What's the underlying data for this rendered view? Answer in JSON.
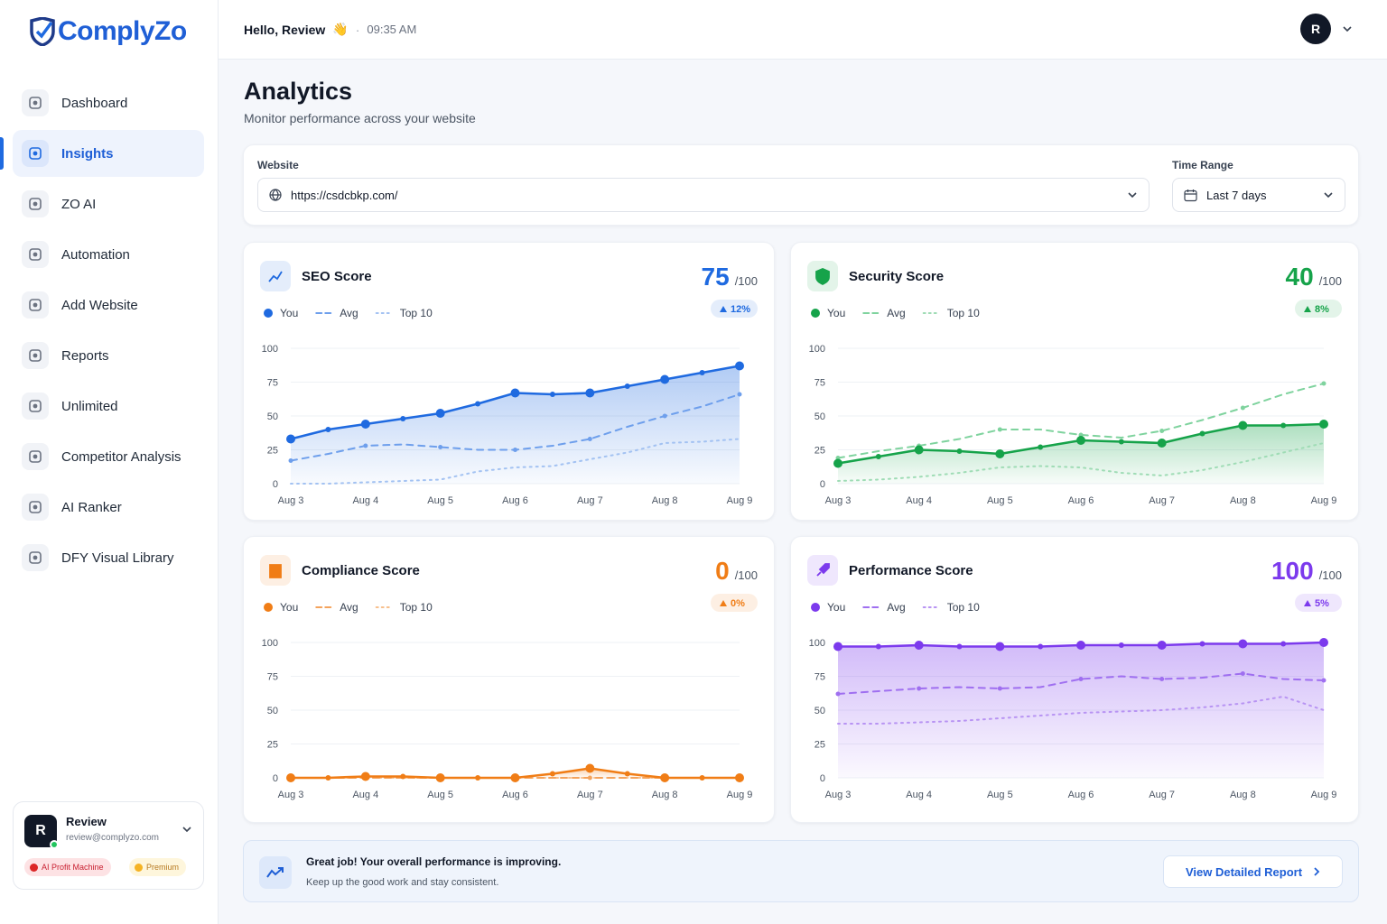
{
  "sidebar": {
    "logo": "ComplyZo",
    "nav": [
      "Dashboard",
      "Insights",
      "ZO AI",
      "Automation",
      "Add Website",
      "Reports",
      "Unlimited",
      "Competitor Analysis",
      "AI Ranker",
      "DFY Visual Library"
    ],
    "user": {
      "initial": "R",
      "name": "Review",
      "email": "review@complyzo.com",
      "badges": [
        "AI Profit Machine",
        "Premium"
      ]
    }
  },
  "header": {
    "greeting": "Hello, Review",
    "emoji": "👋",
    "time": "09:35 AM",
    "avatar": "R"
  },
  "page": {
    "title": "Analytics",
    "subtitle": "Monitor performance across your website"
  },
  "filters": {
    "website_label": "Website",
    "website": "https://csdcbkp.com/",
    "time_label": "Time Range",
    "time": "Last 7 days"
  },
  "chart_data": [
    {
      "type": "line",
      "title": "SEO Score",
      "score": 75,
      "score_suffix": "/100",
      "change": {
        "value": 12,
        "label": "12%"
      },
      "color": "#1f6ae0",
      "area": true,
      "categories": [
        "Aug 3",
        null,
        "Aug 4",
        null,
        "Aug 5",
        null,
        "Aug 6",
        null,
        "Aug 7",
        null,
        "Aug 8",
        null,
        "Aug 9"
      ],
      "series": [
        {
          "name": "You",
          "color": "#1f6ae0",
          "style": "solid",
          "values": [
            33,
            40,
            44,
            48,
            52,
            59,
            67,
            66,
            67,
            72,
            77,
            82,
            87
          ]
        },
        {
          "name": "Avg",
          "color": "#6e9fec",
          "style": "dashed",
          "values": [
            17,
            22,
            28,
            29,
            27,
            25,
            25,
            28,
            33,
            42,
            50,
            57,
            66
          ]
        },
        {
          "name": "Top 10",
          "color": "#a3c2f2",
          "style": "dotted",
          "values": [
            0,
            0,
            1,
            2,
            3,
            9,
            12,
            13,
            18,
            23,
            30,
            31,
            33
          ]
        }
      ],
      "ylim": [
        0,
        100
      ],
      "yticks": [
        0,
        25,
        50,
        75,
        100
      ],
      "grid": true
    },
    {
      "type": "line",
      "title": "Security Score",
      "score": 40,
      "score_suffix": "/100",
      "change": {
        "value": 8,
        "label": "8%"
      },
      "color": "#16a34a",
      "area": true,
      "categories": [
        "Aug 3",
        null,
        "Aug 4",
        null,
        "Aug 5",
        null,
        "Aug 6",
        null,
        "Aug 7",
        null,
        "Aug 8",
        null,
        "Aug 9"
      ],
      "series": [
        {
          "name": "You",
          "color": "#16a34a",
          "style": "solid",
          "values": [
            15,
            20,
            25,
            24,
            22,
            27,
            32,
            31,
            30,
            37,
            43,
            43,
            44
          ]
        },
        {
          "name": "Avg",
          "color": "#7fd39e",
          "style": "dashed",
          "values": [
            19,
            24,
            28,
            33,
            40,
            40,
            36,
            34,
            39,
            47,
            56,
            66,
            74
          ]
        },
        {
          "name": "Top 10",
          "color": "#9fdcb5",
          "style": "dotted",
          "values": [
            2,
            3,
            5,
            8,
            12,
            13,
            12,
            8,
            6,
            10,
            16,
            23,
            30
          ]
        }
      ],
      "ylim": [
        0,
        100
      ],
      "yticks": [
        0,
        25,
        50,
        75,
        100
      ],
      "grid": true
    },
    {
      "type": "line",
      "title": "Compliance Score",
      "score": 0,
      "score_suffix": "/100",
      "change": {
        "value": 0,
        "label": "0%"
      },
      "color": "#f07d16",
      "area": true,
      "categories": [
        "Aug 3",
        null,
        "Aug 4",
        null,
        "Aug 5",
        null,
        "Aug 6",
        null,
        "Aug 7",
        null,
        "Aug 8",
        null,
        "Aug 9"
      ],
      "series": [
        {
          "name": "You",
          "color": "#f07d16",
          "style": "solid",
          "values": [
            0,
            0,
            1,
            1,
            0,
            0,
            0,
            3,
            7,
            3,
            0,
            0,
            0
          ]
        },
        {
          "name": "Avg",
          "color": "#f4a35c",
          "style": "dashed",
          "values": [
            0,
            0,
            0,
            0,
            0,
            0,
            0,
            0,
            0,
            0,
            0,
            0,
            0
          ]
        },
        {
          "name": "Top 10",
          "color": "#f7bf8c",
          "style": "dotted",
          "values": [
            0,
            0,
            0,
            0,
            0,
            0,
            0,
            0,
            0,
            0,
            0,
            0,
            0
          ]
        }
      ],
      "ylim": [
        0,
        100
      ],
      "yticks": [
        0,
        25,
        50,
        75,
        100
      ],
      "grid": true
    },
    {
      "type": "line",
      "title": "Performance Score",
      "score": 100,
      "score_suffix": "/100",
      "change": {
        "value": 5,
        "label": "5%"
      },
      "color": "#7c3aed",
      "area": true,
      "categories": [
        "Aug 3",
        null,
        "Aug 4",
        null,
        "Aug 5",
        null,
        "Aug 6",
        null,
        "Aug 7",
        null,
        "Aug 8",
        null,
        "Aug 9"
      ],
      "series": [
        {
          "name": "You",
          "color": "#7c3aed",
          "style": "solid",
          "values": [
            97,
            97,
            98,
            97,
            97,
            97,
            98,
            98,
            98,
            99,
            99,
            99,
            100
          ]
        },
        {
          "name": "Avg",
          "color": "#9f6ff0",
          "style": "dashed",
          "values": [
            62,
            64,
            66,
            67,
            66,
            67,
            73,
            75,
            73,
            74,
            77,
            73,
            72
          ]
        },
        {
          "name": "Top 10",
          "color": "#b894f3",
          "style": "dotted",
          "values": [
            40,
            40,
            41,
            42,
            44,
            46,
            48,
            49,
            50,
            52,
            55,
            60,
            50
          ]
        }
      ],
      "ylim": [
        0,
        100
      ],
      "yticks": [
        0,
        25,
        50,
        75,
        100
      ],
      "grid": true
    }
  ],
  "banner": {
    "title": "Great job! Your overall performance is improving.",
    "text": "Keep up the good work and stay consistent.",
    "button": "View Detailed Report"
  }
}
